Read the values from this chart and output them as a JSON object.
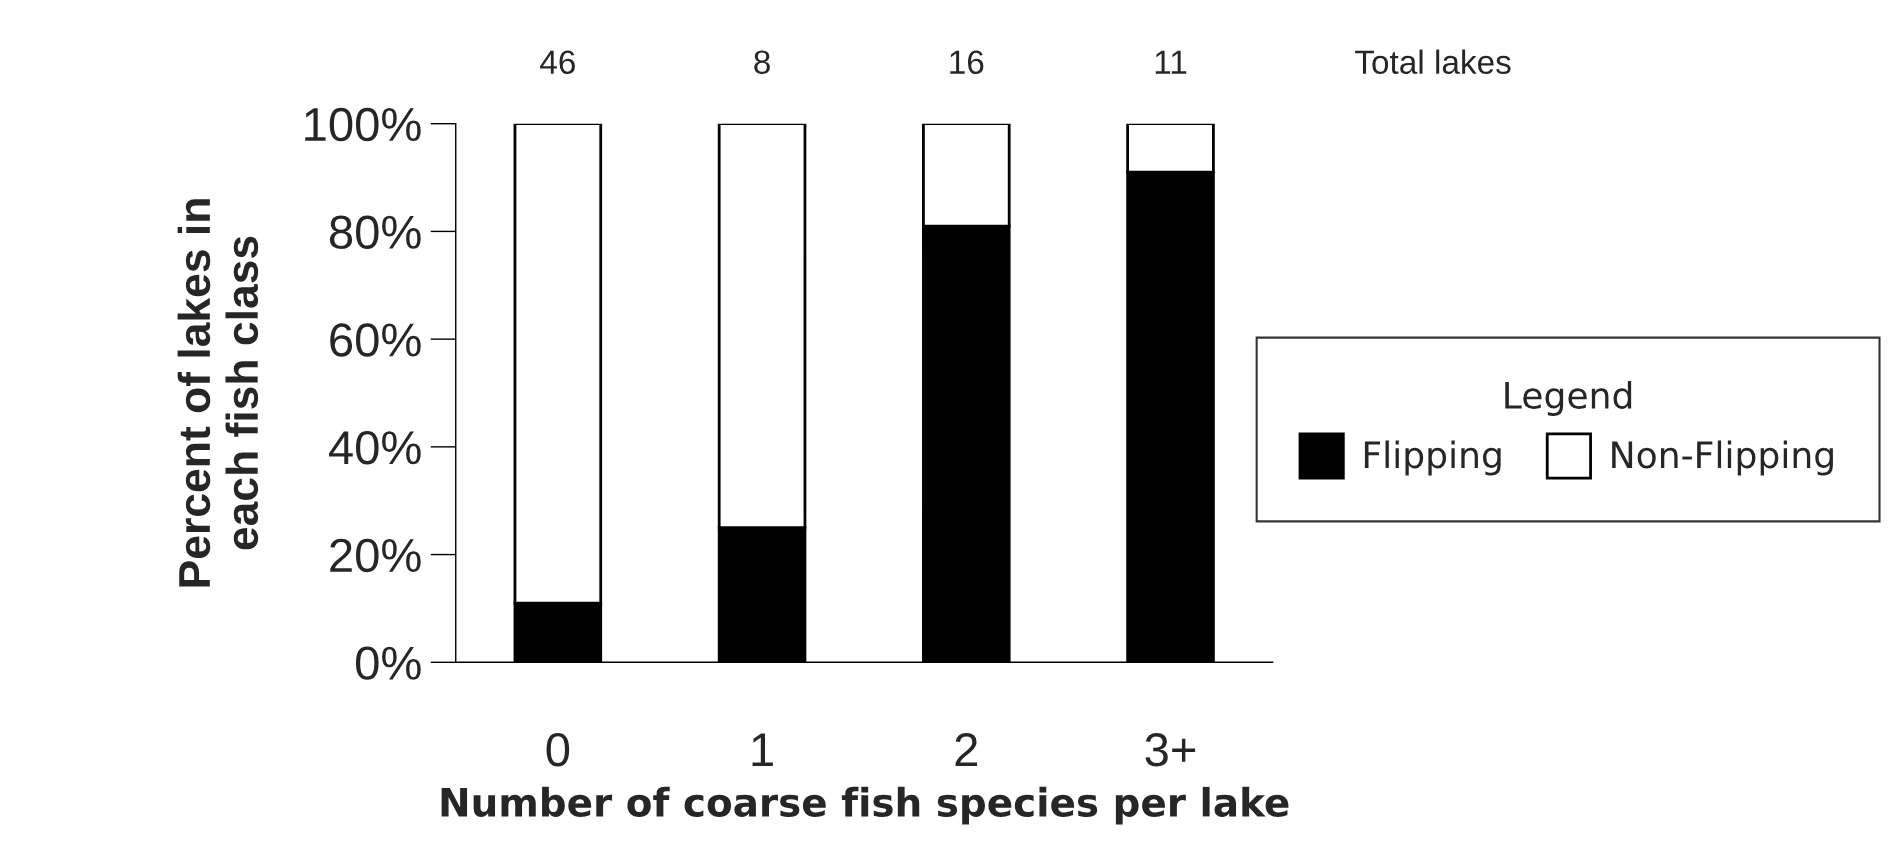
{
  "chart_data": {
    "type": "bar",
    "stacked": true,
    "xlabel": "Number of coarse fish species per lake",
    "ylabel": "Percent of lakes in\neach fish class",
    "categories": [
      "0",
      "1",
      "2",
      "3+"
    ],
    "series": [
      {
        "name": "Flipping",
        "color": "#000000",
        "values": [
          11,
          25,
          81,
          91
        ]
      },
      {
        "name": "Non-Flipping",
        "color": "#ffffff",
        "values": [
          89,
          75,
          19,
          9
        ]
      }
    ],
    "ylim": [
      0,
      100
    ],
    "yticks": [
      {
        "value": 0,
        "label": "0%"
      },
      {
        "value": 20,
        "label": "20%"
      },
      {
        "value": 40,
        "label": "40%"
      },
      {
        "value": 60,
        "label": "60%"
      },
      {
        "value": 80,
        "label": "80%"
      },
      {
        "value": 100,
        "label": "100%"
      }
    ],
    "legend": "right",
    "legend_title": "Legend",
    "grid": false,
    "annotations": [
      "46",
      "8",
      "16",
      "11",
      "Total lakes"
    ]
  }
}
